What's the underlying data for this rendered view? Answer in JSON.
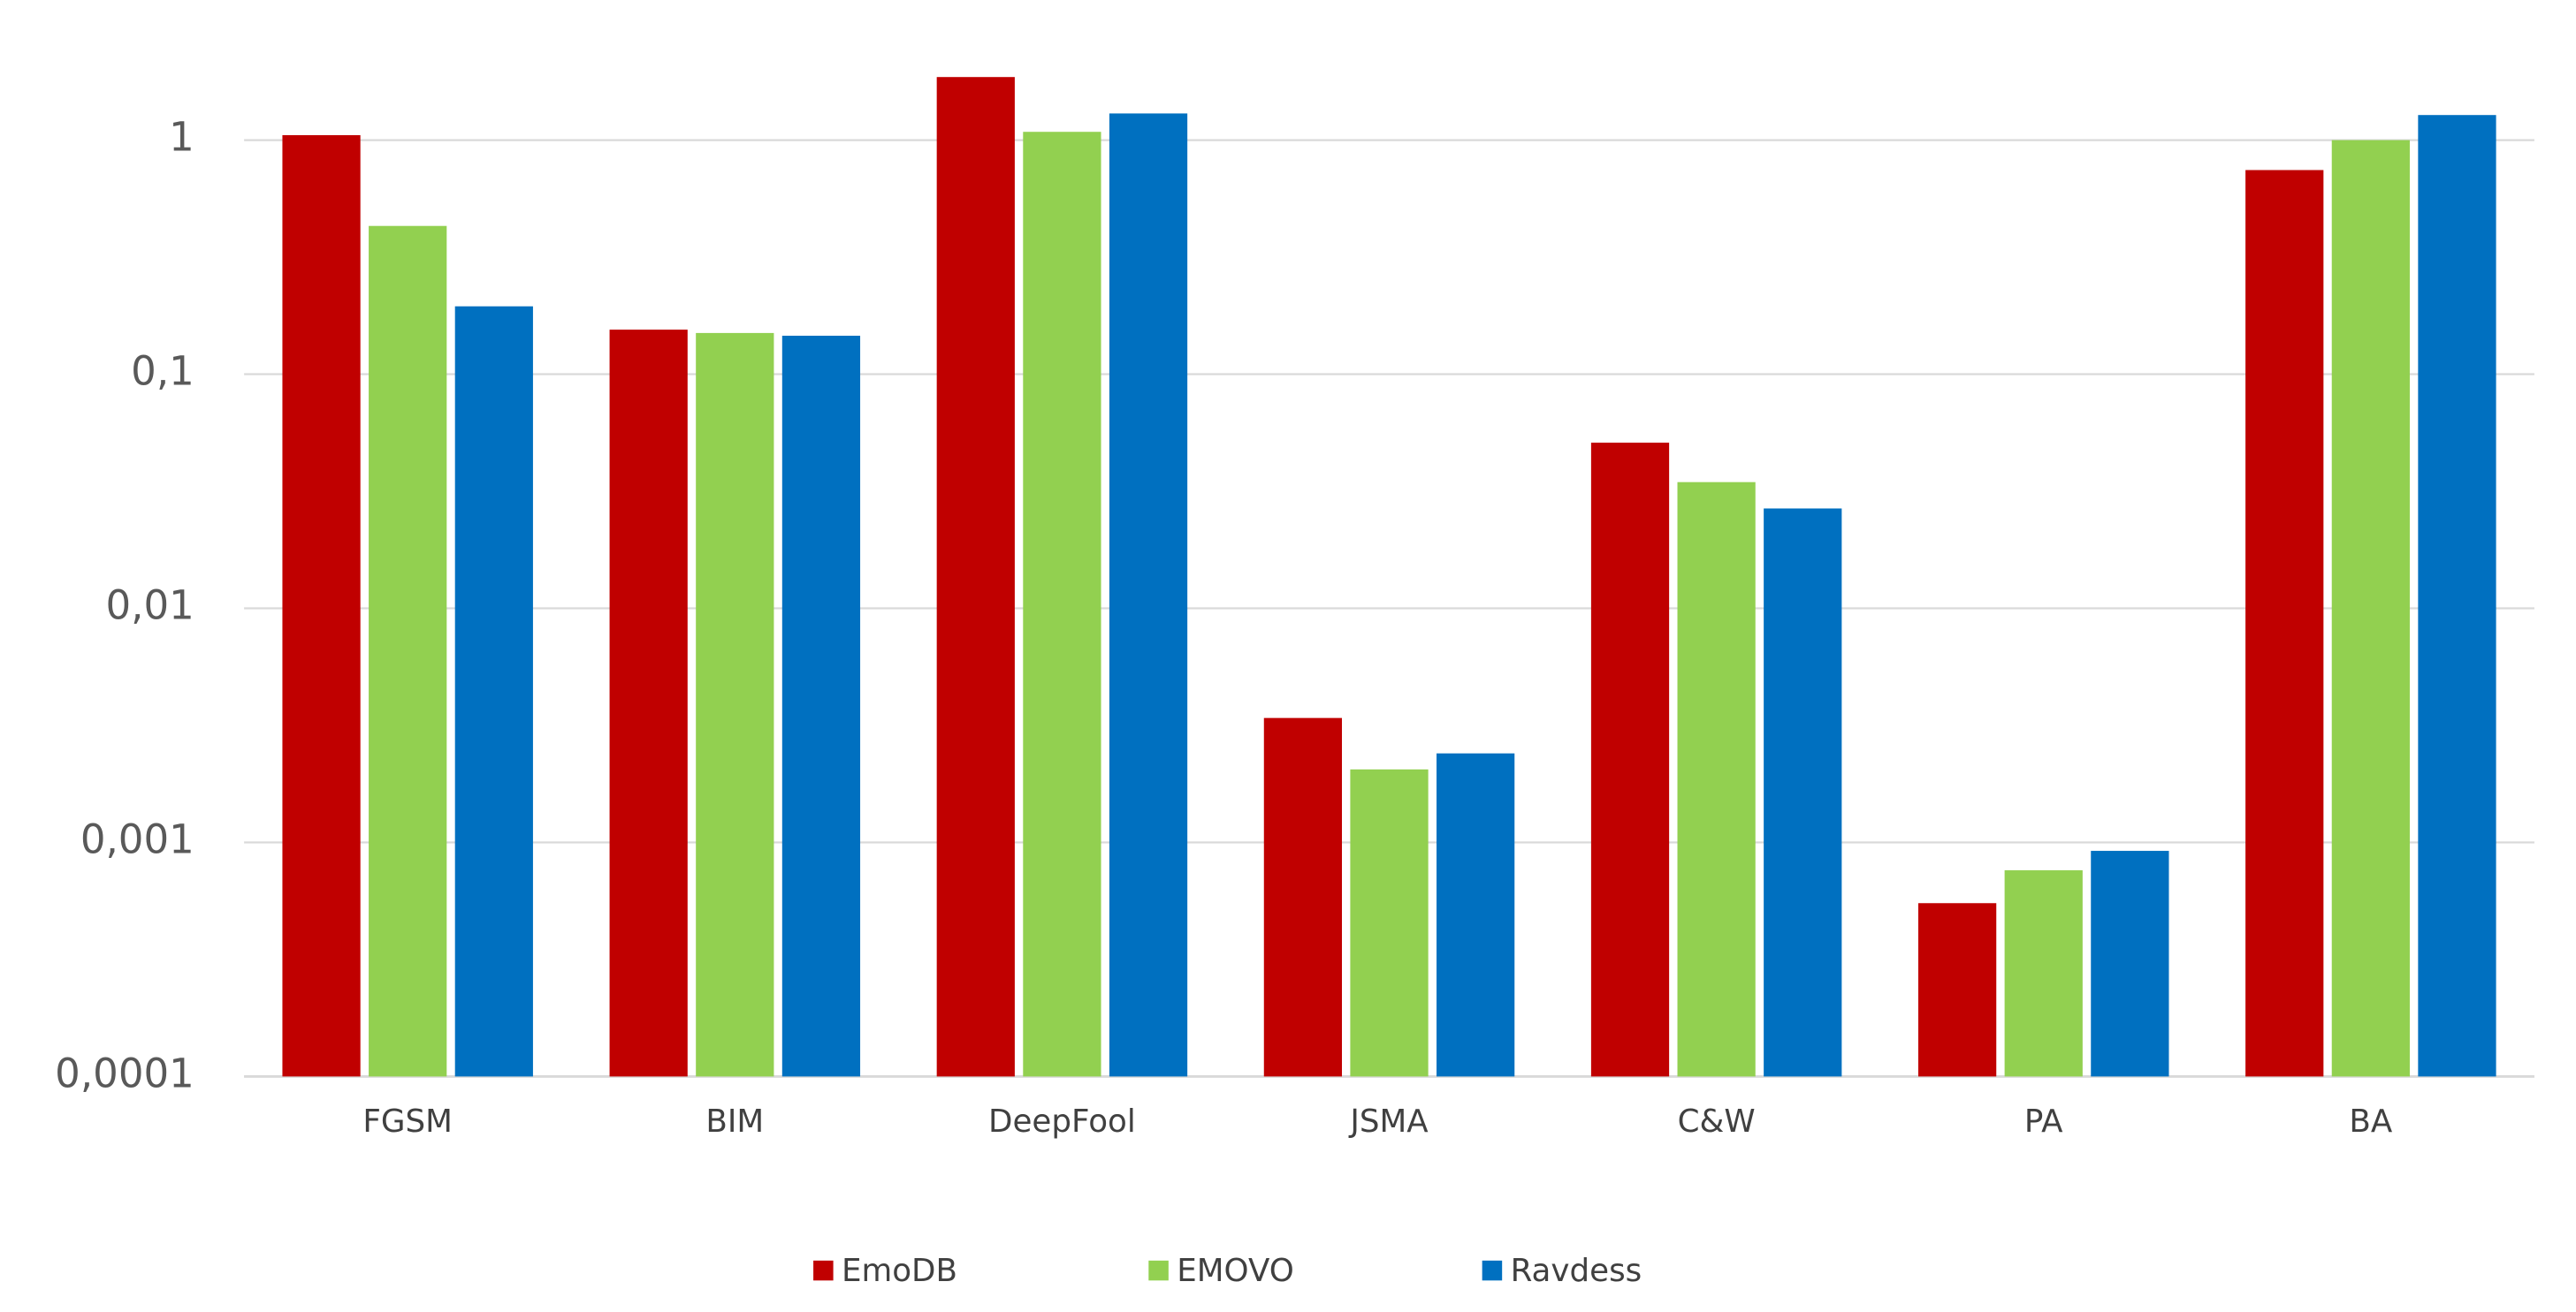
{
  "chart_data": {
    "type": "bar",
    "log_scale": true,
    "grid": true,
    "legend": "bottom",
    "categories": [
      "FGSM",
      "BIM",
      "DeepFool",
      "JSMA",
      "C&W",
      "PA",
      "BA"
    ],
    "series": [
      {
        "name": "EmoDB",
        "color": "#c00000",
        "values": [
          1.05,
          0.155,
          1.86,
          0.0034,
          0.051,
          0.00055,
          0.745
        ]
      },
      {
        "name": "EMOVO",
        "color": "#92d050",
        "values": [
          0.43,
          0.15,
          1.085,
          0.00205,
          0.0346,
          0.00076,
          1.0
        ]
      },
      {
        "name": "Ravdess",
        "color": "#0070c0",
        "values": [
          0.195,
          0.146,
          1.3,
          0.0024,
          0.0267,
          0.00092,
          1.28
        ]
      }
    ],
    "ylim": [
      0.0001,
      2
    ],
    "yticks": [
      {
        "value": 0.0001,
        "label": "0,0001"
      },
      {
        "value": 0.001,
        "label": "0,001"
      },
      {
        "value": 0.01,
        "label": "0,01"
      },
      {
        "value": 0.1,
        "label": "0,1"
      },
      1
    ]
  }
}
